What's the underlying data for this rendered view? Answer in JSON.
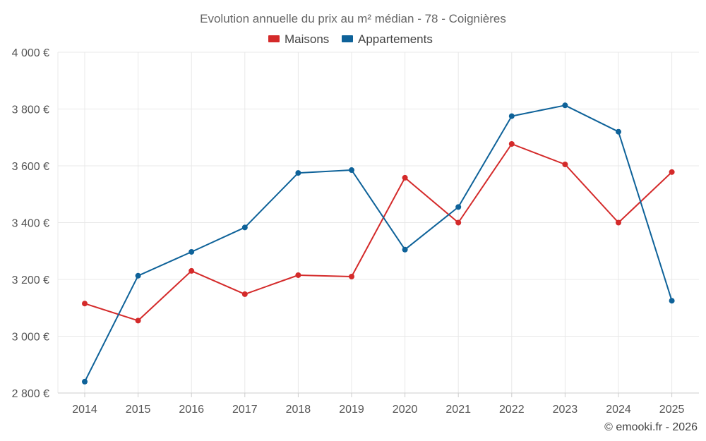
{
  "chart_data": {
    "type": "line",
    "title": "Evolution annuelle du prix au m² médian - 78 - Coignières",
    "categories": [
      "2014",
      "2015",
      "2016",
      "2017",
      "2018",
      "2019",
      "2020",
      "2021",
      "2022",
      "2023",
      "2024",
      "2025"
    ],
    "series": [
      {
        "name": "Maisons",
        "color": "#d42a2a",
        "values": [
          3115,
          3055,
          3230,
          3148,
          3215,
          3210,
          3558,
          3400,
          3677,
          3605,
          3400,
          3578
        ]
      },
      {
        "name": "Appartements",
        "color": "#0e6299",
        "values": [
          2840,
          3213,
          3297,
          3383,
          3575,
          3585,
          3305,
          3455,
          3775,
          3813,
          3720,
          3125
        ]
      }
    ],
    "ylim": [
      2800,
      4000
    ],
    "yticks": [
      2800,
      3000,
      3200,
      3400,
      3600,
      3800,
      4000
    ],
    "ytick_labels": [
      "2 800 €",
      "3 000 €",
      "3 200 €",
      "3 400 €",
      "3 600 €",
      "3 800 €",
      "4 000 €"
    ],
    "legend_position": "top-center",
    "grid": true
  },
  "credit": "© emooki.fr - 2026"
}
